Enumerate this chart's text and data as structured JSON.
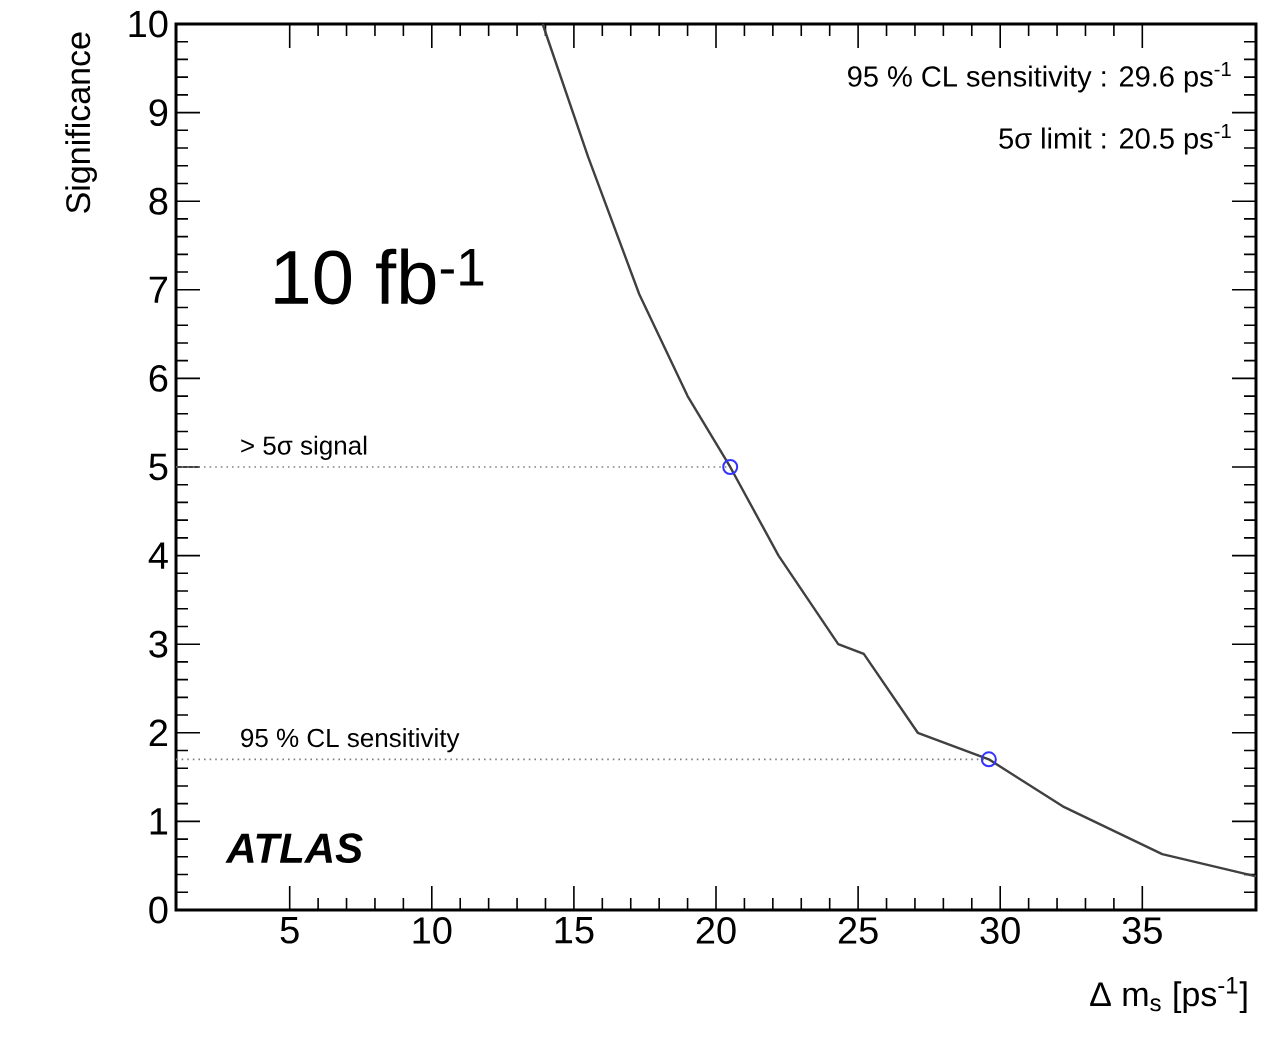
{
  "chart_data": {
    "type": "line",
    "xlabel": "Δ m$_{s}$ [ps$^{-1}$]",
    "ylabel": "Significance",
    "xlim": [
      1,
      39
    ],
    "ylim": [
      0,
      10
    ],
    "xticks": [
      5,
      10,
      15,
      20,
      25,
      30,
      35
    ],
    "yticks": [
      0,
      1,
      2,
      3,
      4,
      5,
      6,
      7,
      8,
      9,
      10
    ],
    "series": [
      {
        "color": "#404040",
        "line_style": "solid",
        "marker": "none",
        "x": [
          13.9,
          15.5,
          17.3,
          19.0,
          20.5,
          22.2,
          24.3,
          25.2,
          27.1,
          29.6,
          32.2,
          35.7,
          39.0
        ],
        "values": [
          10,
          8.5,
          6.95,
          5.8,
          5,
          4,
          3,
          2.89,
          2,
          1.7,
          1.17,
          0.63,
          0.38
        ]
      },
      {
        "type": "scatter",
        "color": "#3333ff",
        "marker": "circle",
        "x": [
          20.5,
          29.6
        ],
        "values": [
          5,
          1.7
        ]
      }
    ],
    "ref_lines": [
      {
        "axis": "y",
        "value": 5,
        "label": "> 5σ signal",
        "line_style": "dotted",
        "color": "#808080"
      },
      {
        "axis": "y",
        "value": 1.7,
        "label": "95 % CL sensitivity",
        "line_style": "dotted",
        "color": "#808080"
      }
    ],
    "annotations": [
      "95 % CL sensitivity : 29.6 ps$^{-1}$",
      "5σ limit : 20.5 ps$^{-1}$",
      "10 fb$^{-1}$",
      "ATLAS"
    ]
  }
}
